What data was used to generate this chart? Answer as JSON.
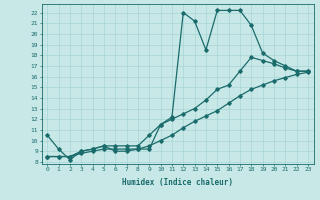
{
  "xlabel": "Humidex (Indice chaleur)",
  "bg_color": "#c8e8e8",
  "line_color": "#1a6b6b",
  "xlim": [
    -0.5,
    23.5
  ],
  "ylim": [
    7.8,
    22.8
  ],
  "xticks": [
    0,
    1,
    2,
    3,
    4,
    5,
    6,
    7,
    8,
    9,
    10,
    11,
    12,
    13,
    14,
    15,
    16,
    17,
    18,
    19,
    20,
    21,
    22,
    23
  ],
  "yticks": [
    8,
    9,
    10,
    11,
    12,
    13,
    14,
    15,
    16,
    17,
    18,
    19,
    20,
    21,
    22
  ],
  "curve1_x": [
    0,
    1,
    2,
    3,
    4,
    5,
    6,
    7,
    8,
    9,
    10,
    11,
    12,
    13,
    14,
    15,
    16,
    17,
    18,
    19,
    20,
    21,
    22,
    23
  ],
  "curve1_y": [
    10.5,
    9.2,
    8.2,
    9.0,
    9.2,
    9.5,
    9.0,
    9.0,
    9.2,
    9.2,
    11.5,
    12.2,
    22.0,
    21.2,
    18.5,
    22.2,
    22.2,
    22.2,
    20.8,
    18.2,
    17.5,
    17.0,
    16.5,
    16.5
  ],
  "curve2_x": [
    0,
    1,
    2,
    3,
    4,
    5,
    6,
    7,
    8,
    9,
    10,
    11,
    12,
    13,
    14,
    15,
    16,
    17,
    18,
    19,
    20,
    21,
    22,
    23
  ],
  "curve2_y": [
    8.5,
    8.5,
    8.5,
    9.0,
    9.2,
    9.5,
    9.5,
    9.5,
    9.5,
    10.5,
    11.5,
    12.0,
    12.5,
    13.0,
    13.8,
    14.8,
    15.2,
    16.5,
    17.8,
    17.5,
    17.2,
    16.8,
    16.5,
    16.5
  ],
  "curve3_x": [
    0,
    1,
    2,
    3,
    4,
    5,
    6,
    7,
    8,
    9,
    10,
    11,
    12,
    13,
    14,
    15,
    16,
    17,
    18,
    19,
    20,
    21,
    22,
    23
  ],
  "curve3_y": [
    8.5,
    8.5,
    8.5,
    8.8,
    9.0,
    9.2,
    9.2,
    9.2,
    9.2,
    9.5,
    10.0,
    10.5,
    11.2,
    11.8,
    12.3,
    12.8,
    13.5,
    14.2,
    14.8,
    15.2,
    15.6,
    15.9,
    16.2,
    16.4
  ],
  "grid_color": "#a8d4d4",
  "marker": "D",
  "markersize": 1.8,
  "linewidth": 0.9
}
